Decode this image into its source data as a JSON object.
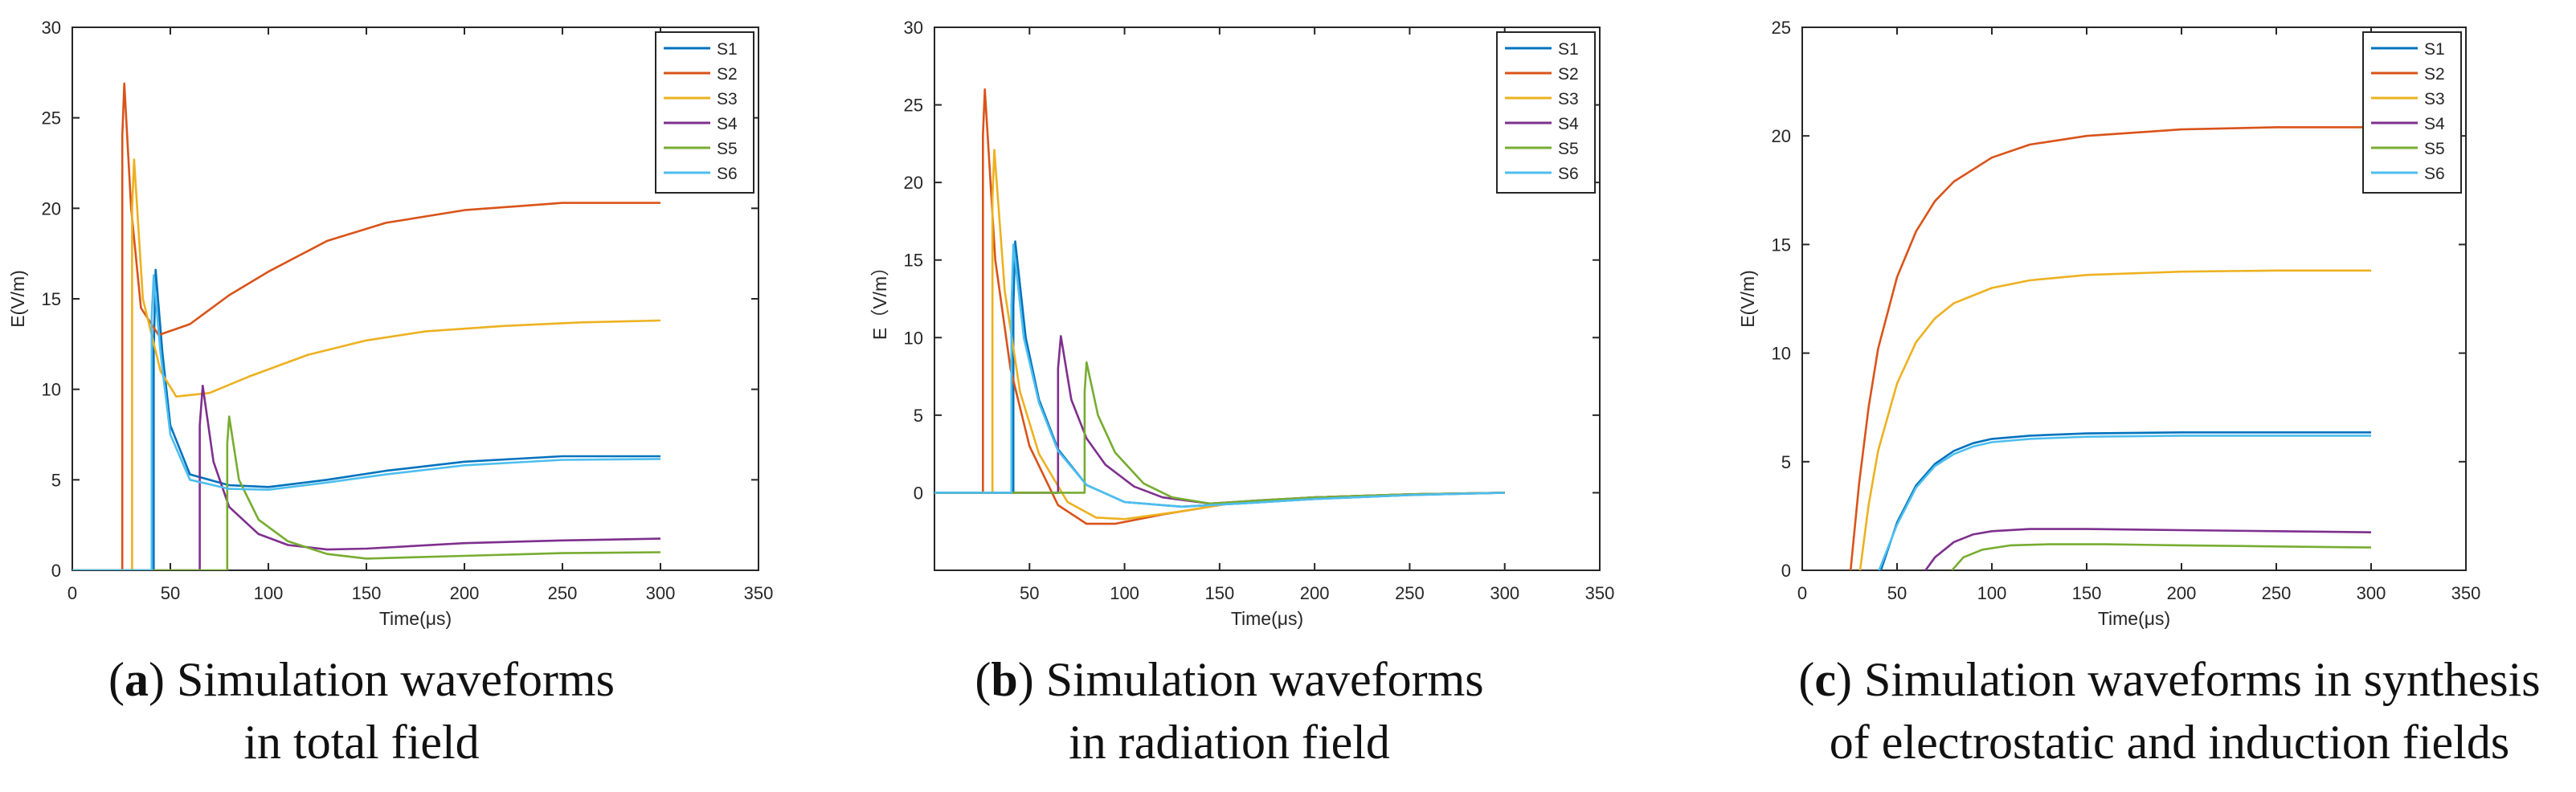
{
  "figure": {
    "captions": [
      {
        "label": "a",
        "line1": "Simulation waveforms",
        "line2": "in total field"
      },
      {
        "label": "b",
        "line1": "Simulation waveforms",
        "line2": "in radiation field"
      },
      {
        "label": "c",
        "line1": "Simulation waveforms in synthesis",
        "line2": "of electrostatic and induction fields"
      }
    ]
  },
  "chart_data": [
    {
      "type": "line",
      "title": "Simulation waveforms in total field",
      "xlabel": "Time(μs)",
      "ylabel": "E(V/m)",
      "xlim": [
        0,
        350
      ],
      "ylim": [
        0,
        30
      ],
      "xticks": [
        0,
        50,
        100,
        150,
        200,
        250,
        300,
        350
      ],
      "yticks": [
        0,
        5,
        10,
        15,
        20,
        25,
        30
      ],
      "legend_position": "top-right",
      "series": [
        {
          "name": "S1",
          "color": "#0072BD",
          "points": [
            [
              0,
              0
            ],
            [
              41.5,
              0
            ],
            [
              41.5,
              12
            ],
            [
              42.5,
              16.6
            ],
            [
              46,
              12
            ],
            [
              50,
              8
            ],
            [
              60,
              5.3
            ],
            [
              80,
              4.7
            ],
            [
              100,
              4.6
            ],
            [
              130,
              5
            ],
            [
              160,
              5.5
            ],
            [
              200,
              6
            ],
            [
              250,
              6.3
            ],
            [
              300,
              6.3
            ]
          ]
        },
        {
          "name": "S2",
          "color": "#D95319",
          "points": [
            [
              0,
              0
            ],
            [
              25.5,
              0
            ],
            [
              25.5,
              24
            ],
            [
              26.5,
              26.9
            ],
            [
              30,
              20
            ],
            [
              35,
              14.5
            ],
            [
              44,
              13
            ],
            [
              60,
              13.6
            ],
            [
              80,
              15.2
            ],
            [
              100,
              16.5
            ],
            [
              130,
              18.2
            ],
            [
              160,
              19.2
            ],
            [
              200,
              19.9
            ],
            [
              250,
              20.3
            ],
            [
              300,
              20.3
            ]
          ]
        },
        {
          "name": "S3",
          "color": "#EDB120",
          "points": [
            [
              0,
              0
            ],
            [
              30.5,
              0
            ],
            [
              30.5,
              20
            ],
            [
              31.5,
              22.7
            ],
            [
              36,
              15
            ],
            [
              45,
              11
            ],
            [
              53,
              9.6
            ],
            [
              70,
              9.8
            ],
            [
              90,
              10.7
            ],
            [
              120,
              11.9
            ],
            [
              150,
              12.7
            ],
            [
              180,
              13.2
            ],
            [
              220,
              13.5
            ],
            [
              260,
              13.7
            ],
            [
              300,
              13.8
            ]
          ]
        },
        {
          "name": "S4",
          "color": "#7E2F8E",
          "points": [
            [
              0,
              0
            ],
            [
              65,
              0
            ],
            [
              65,
              8
            ],
            [
              66.5,
              10.2
            ],
            [
              72,
              6
            ],
            [
              80,
              3.5
            ],
            [
              95,
              2
            ],
            [
              110,
              1.4
            ],
            [
              130,
              1.15
            ],
            [
              150,
              1.2
            ],
            [
              200,
              1.5
            ],
            [
              250,
              1.65
            ],
            [
              300,
              1.75
            ]
          ]
        },
        {
          "name": "S5",
          "color": "#77AC30",
          "points": [
            [
              0,
              0
            ],
            [
              79,
              0
            ],
            [
              79,
              7
            ],
            [
              80,
              8.5
            ],
            [
              85,
              5
            ],
            [
              95,
              2.8
            ],
            [
              110,
              1.6
            ],
            [
              130,
              0.9
            ],
            [
              150,
              0.65
            ],
            [
              200,
              0.8
            ],
            [
              250,
              0.95
            ],
            [
              300,
              1.0
            ]
          ]
        },
        {
          "name": "S6",
          "color": "#4DBEEE",
          "points": [
            [
              0,
              0
            ],
            [
              40.5,
              0
            ],
            [
              40.5,
              14
            ],
            [
              41.5,
              16.3
            ],
            [
              45,
              12
            ],
            [
              50,
              7.5
            ],
            [
              60,
              5
            ],
            [
              80,
              4.5
            ],
            [
              100,
              4.45
            ],
            [
              130,
              4.85
            ],
            [
              160,
              5.3
            ],
            [
              200,
              5.8
            ],
            [
              250,
              6.1
            ],
            [
              300,
              6.15
            ]
          ]
        }
      ]
    },
    {
      "type": "line",
      "title": "Simulation waveforms in radiation field",
      "xlabel": "Time(μs)",
      "ylabel": "E（V/m）",
      "xlim": [
        0,
        350
      ],
      "ylim": [
        -5,
        30
      ],
      "xticks": [
        50,
        100,
        150,
        200,
        250,
        300,
        350
      ],
      "yticks": [
        0,
        5,
        10,
        15,
        20,
        25,
        30
      ],
      "legend_position": "top-right",
      "series": [
        {
          "name": "S1",
          "color": "#0072BD",
          "points": [
            [
              0,
              0
            ],
            [
              41.5,
              0
            ],
            [
              41.5,
              12
            ],
            [
              42.5,
              16.2
            ],
            [
              48,
              10
            ],
            [
              55,
              6
            ],
            [
              65,
              2.8
            ],
            [
              80,
              0.5
            ],
            [
              100,
              -0.6
            ],
            [
              130,
              -0.9
            ],
            [
              160,
              -0.7
            ],
            [
              200,
              -0.4
            ],
            [
              250,
              -0.15
            ],
            [
              300,
              0
            ]
          ]
        },
        {
          "name": "S2",
          "color": "#D95319",
          "points": [
            [
              0,
              0
            ],
            [
              25.5,
              0
            ],
            [
              25.5,
              23
            ],
            [
              26.5,
              26
            ],
            [
              32,
              15
            ],
            [
              40,
              8
            ],
            [
              50,
              3
            ],
            [
              65,
              -0.8
            ],
            [
              80,
              -2
            ],
            [
              95,
              -2
            ],
            [
              120,
              -1.4
            ],
            [
              160,
              -0.6
            ],
            [
              200,
              -0.3
            ],
            [
              250,
              -0.1
            ],
            [
              300,
              0
            ]
          ]
        },
        {
          "name": "S3",
          "color": "#EDB120",
          "points": [
            [
              0,
              0
            ],
            [
              30.5,
              0
            ],
            [
              30.5,
              19
            ],
            [
              31.5,
              22.1
            ],
            [
              37,
              13
            ],
            [
              45,
              6.5
            ],
            [
              55,
              2.5
            ],
            [
              70,
              -0.6
            ],
            [
              85,
              -1.6
            ],
            [
              100,
              -1.7
            ],
            [
              130,
              -1.2
            ],
            [
              160,
              -0.6
            ],
            [
              200,
              -0.3
            ],
            [
              250,
              -0.1
            ],
            [
              300,
              0
            ]
          ]
        },
        {
          "name": "S4",
          "color": "#7E2F8E",
          "points": [
            [
              0,
              0
            ],
            [
              65,
              0
            ],
            [
              65,
              8
            ],
            [
              66.5,
              10.1
            ],
            [
              72,
              6
            ],
            [
              80,
              3.5
            ],
            [
              90,
              1.8
            ],
            [
              105,
              0.4
            ],
            [
              120,
              -0.3
            ],
            [
              145,
              -0.7
            ],
            [
              170,
              -0.5
            ],
            [
              200,
              -0.3
            ],
            [
              250,
              -0.1
            ],
            [
              300,
              0
            ]
          ]
        },
        {
          "name": "S5",
          "color": "#77AC30",
          "points": [
            [
              0,
              0
            ],
            [
              79,
              0
            ],
            [
              79,
              6.5
            ],
            [
              80,
              8.4
            ],
            [
              86,
              5
            ],
            [
              95,
              2.6
            ],
            [
              110,
              0.6
            ],
            [
              125,
              -0.3
            ],
            [
              145,
              -0.7
            ],
            [
              170,
              -0.5
            ],
            [
              200,
              -0.3
            ],
            [
              250,
              -0.1
            ],
            [
              300,
              0
            ]
          ]
        },
        {
          "name": "S6",
          "color": "#4DBEEE",
          "points": [
            [
              0,
              0
            ],
            [
              40.5,
              0
            ],
            [
              40.5,
              12
            ],
            [
              41.5,
              16
            ],
            [
              47,
              10
            ],
            [
              55,
              5.8
            ],
            [
              65,
              2.7
            ],
            [
              80,
              0.5
            ],
            [
              100,
              -0.6
            ],
            [
              130,
              -0.9
            ],
            [
              160,
              -0.7
            ],
            [
              200,
              -0.4
            ],
            [
              250,
              -0.15
            ],
            [
              300,
              0
            ]
          ]
        }
      ]
    },
    {
      "type": "line",
      "title": "Simulation waveforms in synthesis of electrostatic and induction fields",
      "xlabel": "Time(μs)",
      "ylabel": "E(V/m)",
      "xlim": [
        0,
        350
      ],
      "ylim": [
        0,
        25
      ],
      "xticks": [
        0,
        50,
        100,
        150,
        200,
        250,
        300,
        350
      ],
      "yticks": [
        0,
        5,
        10,
        15,
        20,
        25
      ],
      "legend_position": "top-right",
      "series": [
        {
          "name": "S1",
          "color": "#0072BD",
          "points": [
            [
              41.5,
              0
            ],
            [
              50,
              2.2
            ],
            [
              60,
              3.9
            ],
            [
              70,
              4.9
            ],
            [
              80,
              5.5
            ],
            [
              90,
              5.85
            ],
            [
              100,
              6.05
            ],
            [
              120,
              6.2
            ],
            [
              150,
              6.3
            ],
            [
              200,
              6.35
            ],
            [
              250,
              6.35
            ],
            [
              300,
              6.35
            ]
          ]
        },
        {
          "name": "S2",
          "color": "#D95319",
          "points": [
            [
              25.5,
              0
            ],
            [
              30,
              4
            ],
            [
              35,
              7.5
            ],
            [
              40,
              10.2
            ],
            [
              50,
              13.5
            ],
            [
              60,
              15.6
            ],
            [
              70,
              17
            ],
            [
              80,
              17.9
            ],
            [
              100,
              19
            ],
            [
              120,
              19.6
            ],
            [
              150,
              20
            ],
            [
              200,
              20.3
            ],
            [
              250,
              20.4
            ],
            [
              300,
              20.4
            ]
          ]
        },
        {
          "name": "S3",
          "color": "#EDB120",
          "points": [
            [
              30.5,
              0
            ],
            [
              35,
              3
            ],
            [
              40,
              5.5
            ],
            [
              50,
              8.6
            ],
            [
              60,
              10.5
            ],
            [
              70,
              11.6
            ],
            [
              80,
              12.3
            ],
            [
              100,
              13
            ],
            [
              120,
              13.35
            ],
            [
              150,
              13.6
            ],
            [
              200,
              13.75
            ],
            [
              250,
              13.8
            ],
            [
              300,
              13.8
            ]
          ]
        },
        {
          "name": "S4",
          "color": "#7E2F8E",
          "points": [
            [
              65,
              0
            ],
            [
              70,
              0.6
            ],
            [
              80,
              1.3
            ],
            [
              90,
              1.65
            ],
            [
              100,
              1.8
            ],
            [
              120,
              1.9
            ],
            [
              150,
              1.9
            ],
            [
              200,
              1.85
            ],
            [
              250,
              1.8
            ],
            [
              300,
              1.75
            ]
          ]
        },
        {
          "name": "S5",
          "color": "#77AC30",
          "points": [
            [
              79,
              0
            ],
            [
              85,
              0.6
            ],
            [
              95,
              0.95
            ],
            [
              110,
              1.15
            ],
            [
              130,
              1.2
            ],
            [
              160,
              1.2
            ],
            [
              200,
              1.15
            ],
            [
              250,
              1.1
            ],
            [
              300,
              1.05
            ]
          ]
        },
        {
          "name": "S6",
          "color": "#4DBEEE",
          "points": [
            [
              40.5,
              0
            ],
            [
              50,
              2.1
            ],
            [
              60,
              3.8
            ],
            [
              70,
              4.8
            ],
            [
              80,
              5.35
            ],
            [
              90,
              5.7
            ],
            [
              100,
              5.9
            ],
            [
              120,
              6.05
            ],
            [
              150,
              6.15
            ],
            [
              200,
              6.2
            ],
            [
              250,
              6.2
            ],
            [
              300,
              6.2
            ]
          ]
        }
      ]
    }
  ]
}
